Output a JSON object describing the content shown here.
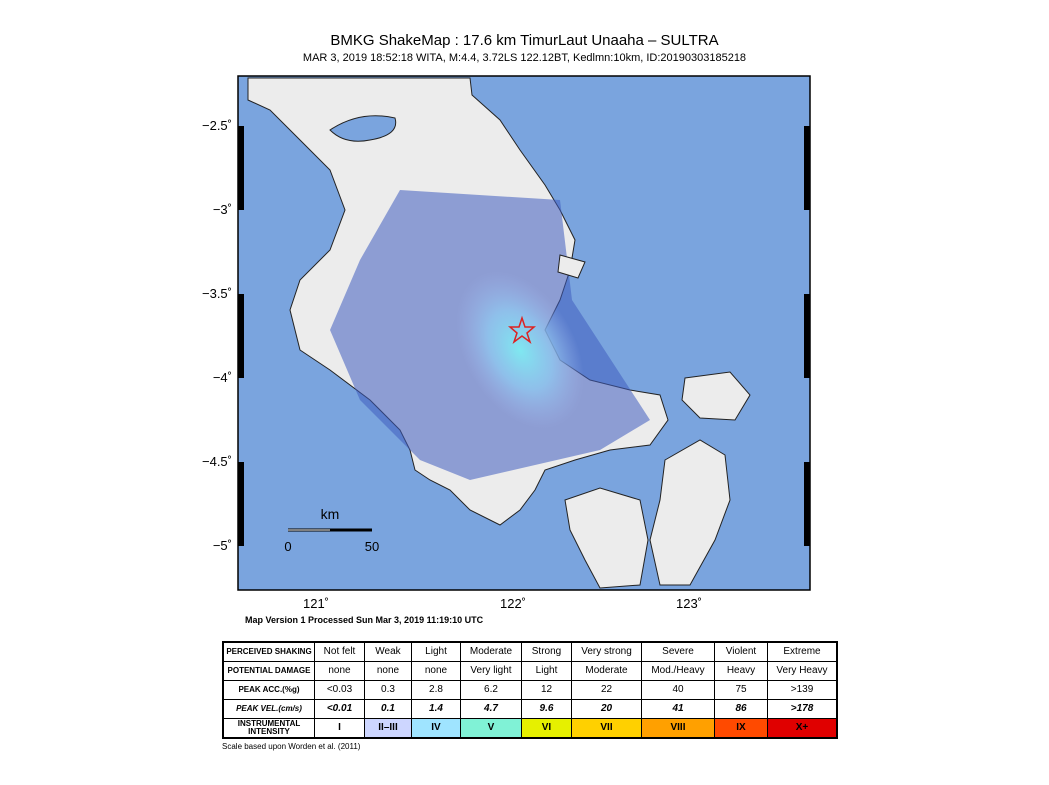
{
  "header": {
    "title": "BMKG ShakeMap : 17.6 km TimurLaut Unaaha – SULTRA",
    "subtitle": "MAR 3, 2019 18:52:18 WITA, M:4.4, 3.72LS 122.12BT, Kedlmn:10km, ID:20190303185218"
  },
  "map": {
    "lat_labels": [
      "−2.5˚",
      "−3˚",
      "−3.5˚",
      "−4˚",
      "−4.5˚",
      "−5˚"
    ],
    "lon_labels": [
      "121˚",
      "122˚",
      "123˚"
    ],
    "scale": {
      "unit": "km",
      "start": "0",
      "end": "50"
    },
    "version": "Map Version 1 Processed Sun Mar  3, 2019 11:19:10 UTC"
  },
  "table": {
    "rows": [
      [
        "PERCEIVED SHAKING",
        "Not felt",
        "Weak",
        "Light",
        "Moderate",
        "Strong",
        "Very strong",
        "Severe",
        "Violent",
        "Extreme"
      ],
      [
        "POTENTIAL DAMAGE",
        "none",
        "none",
        "none",
        "Very light",
        "Light",
        "Moderate",
        "Mod./Heavy",
        "Heavy",
        "Very Heavy"
      ],
      [
        "PEAK ACC.(%g)",
        "<0.03",
        "0.3",
        "2.8",
        "6.2",
        "12",
        "22",
        "40",
        "75",
        ">139"
      ],
      [
        "PEAK VEL.(cm/s)",
        "<0.01",
        "0.1",
        "1.4",
        "4.7",
        "9.6",
        "20",
        "41",
        "86",
        ">178"
      ],
      [
        "INSTRUMENTAL INTENSITY",
        "I",
        "II–III",
        "IV",
        "V",
        "VI",
        "VII",
        "VIII",
        "IX",
        "X+"
      ]
    ]
  },
  "footnote": "Scale based upon Worden et al. (2011)"
}
